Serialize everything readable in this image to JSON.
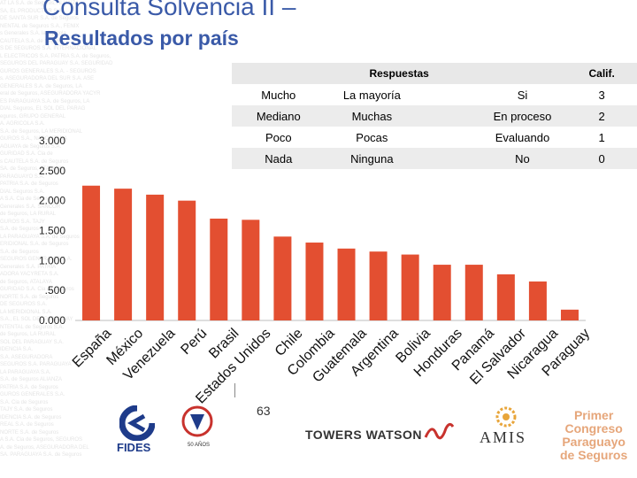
{
  "title": {
    "line1": "Consulta Solvencia II –",
    "line2": "Resultados por país"
  },
  "legend": {
    "header_respuestas": "Respuestas",
    "header_calif": "Calif.",
    "rows": [
      {
        "c1": "Mucho",
        "c2": "La mayoría",
        "c3": "Si",
        "calif": "3"
      },
      {
        "c1": "Mediano",
        "c2": "Muchas",
        "c3": "En proceso",
        "calif": "2"
      },
      {
        "c1": "Poco",
        "c2": "Pocas",
        "c3": "Evaluando",
        "calif": "1"
      },
      {
        "c1": "Nada",
        "c2": "Ninguna",
        "c3": "No",
        "calif": "0"
      }
    ]
  },
  "chart_data": {
    "type": "bar",
    "categories": [
      "España",
      "México",
      "Venezuela",
      "Perú",
      "Brasil",
      "Estados Unidos",
      "Chile",
      "Colombia",
      "Guatemala",
      "Argentina",
      "Bolivia",
      "Honduras",
      "Panamá",
      "El Salvador",
      "Nicaragua",
      "Paraguay"
    ],
    "values": [
      2.25,
      2.2,
      2.1,
      2.0,
      1.7,
      1.68,
      1.4,
      1.3,
      1.2,
      1.15,
      1.1,
      0.93,
      0.93,
      0.77,
      0.65,
      0.18
    ],
    "yticks": [
      "0.000",
      ".500",
      "1.000",
      "1.500",
      "2.000",
      "2.500",
      "3.000"
    ],
    "ylim": [
      0,
      3
    ],
    "bar_color": "#e34f31",
    "grid": false
  },
  "footer": {
    "page_number": "63",
    "fides": "FIDES",
    "anos": "50 AÑOS",
    "towers_watson": "TOWERS WATSON",
    "amis": "AMIS",
    "congreso": [
      "Primer",
      "Congreso",
      "Paraguayo",
      "de Seguros"
    ]
  },
  "background_text": [
    "AT LA S.A. de Seguros, ALIANZA",
    "SA, EL PRODUCTOR S.A.",
    "DE SANTA SUR S.A. de Seguros",
    "NENTAL de Seguros S.A., FENIX",
    "s Generales S.A. la Agricola",
    "CAUTELA S.A. de Seguros",
    "S DE SEGUROS S.A. INTERNACIONAL",
    "L ELECTRICOS S.A. PATRIA S.A. de Seguros,",
    "SEGUROS DEL PARAGUAY S.A. SEGURIDAD",
    "GUROS GENERALES S.A. - SEGUROS",
    "s. ASEGURADORA DEL SUR S.A. ASE",
    "GENERALES S.A. de Seguros, LA",
    "eral de Seguros, ASEGURADORA YACYR",
    "ES PARAGUAYA S.A. de Seguros, LA",
    "DIAL Seguros, EL SOL DEL PARAG",
    "eguros, GRUPO GENERAL",
    "A. AGRICOLA S.A.",
    "S.A. de Seguros, LA MERIDIONAL",
    "GUROS S.A., NAPOLITANA",
    "AGUAYA de Seguros S.A.",
    "GURIDAD S.A. Cia de",
    "s CAUTELA S.A. de Seguros",
    "SA. de Seguros, ATALAYA",
    "PARAGUAYO S.A.",
    "PATRIA S.A. de Seguros",
    "DIAL Seguros S.A.",
    "A S.A. Cia de Seguros",
    "Generales S.A. SANCOR",
    "de Seguros, LA RURAL",
    "GUROS S.A. TAJY",
    "S.A. de Seguros",
    "LA PARAGUAYA S.A. de Seguros",
    "ERIDIONAL S.A. de Seguros",
    "S.A. de Seguros",
    "SEGUROS GENERALES S.A.",
    "Generales S.A. PATRIA",
    "ADORA YACYRETA S.A.",
    "de Seguros, ATALAYA",
    "GURIDAD S.A. Cia de Seguros",
    "NORTE S.A. de Seguros",
    "DE SEGUROS S.A.",
    "LA MERIDIONAL S.A.",
    "S.A., EL SOL DEL PARAGUAY",
    "NTENTAL de Seguros S.A.",
    "de Seguros, LA RURAL",
    "SOL DEL PARAGUAY S.A.",
    "IDENCIA S.A.",
    "S.A. ASEGURADORA",
    "SEGUROS S.A. PARAGUAYA",
    "LA PARAGUAYA S.A.",
    "S.A. de Seguros ALIANZA",
    "PATRIA S.A. de Seguros",
    "GUROS GENERALES S.A.",
    "S.A. Cia de Seguros",
    "TAJY S.A. de Seguros",
    "IDENCIA S.A. de Seguros",
    "REAL S.A. de Seguros",
    "NORTE S.A. de Seguros",
    "A S.A. Cia de Seguros, SEGUROS",
    "A. de Seguros, ASEGURADORA DEL",
    "SA. PARAGUAYA S.A. de Seguros"
  ]
}
